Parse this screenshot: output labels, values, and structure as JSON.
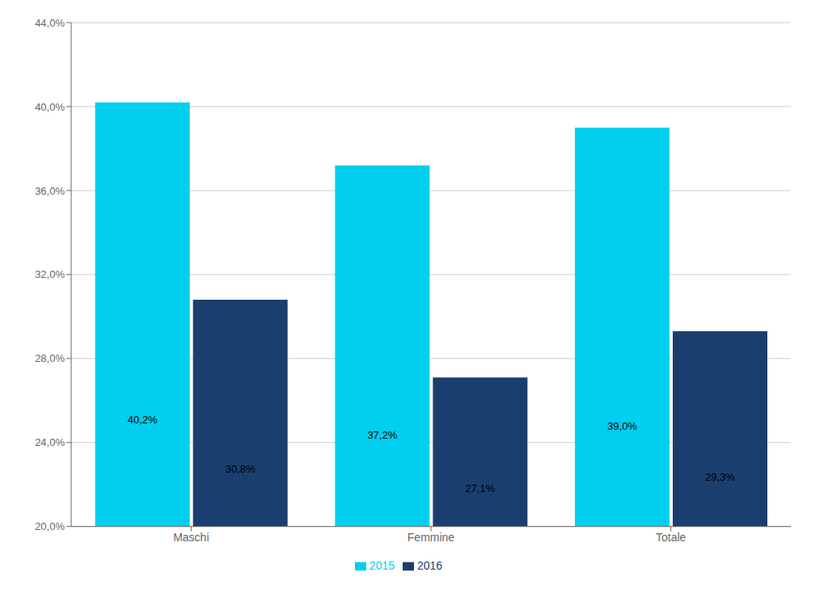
{
  "chart_data": {
    "type": "bar",
    "categories": [
      "Maschi",
      "Femmine",
      "Totale"
    ],
    "series": [
      {
        "name": "2015",
        "color": "#00CFEF",
        "values": [
          40.2,
          37.2,
          39.0
        ],
        "value_labels": [
          "40,2%",
          "37,2%",
          "39,0%"
        ]
      },
      {
        "name": "2016",
        "color": "#1A3F6F",
        "values": [
          30.8,
          27.1,
          29.3
        ],
        "value_labels": [
          "30,8%",
          "27,1%",
          "29,3%"
        ]
      }
    ],
    "ylim": [
      20.0,
      44.0
    ],
    "yticks": [
      {
        "value": 20.0,
        "label": "20,0%"
      },
      {
        "value": 24.0,
        "label": "24,0%"
      },
      {
        "value": 28.0,
        "label": "28,0%"
      },
      {
        "value": 32.0,
        "label": "32,0%"
      },
      {
        "value": 36.0,
        "label": "36,0%"
      },
      {
        "value": 40.0,
        "label": "40,0%"
      },
      {
        "value": 44.0,
        "label": "44,0%"
      }
    ],
    "grid": true,
    "data_labels": true,
    "legend": "bottom"
  }
}
